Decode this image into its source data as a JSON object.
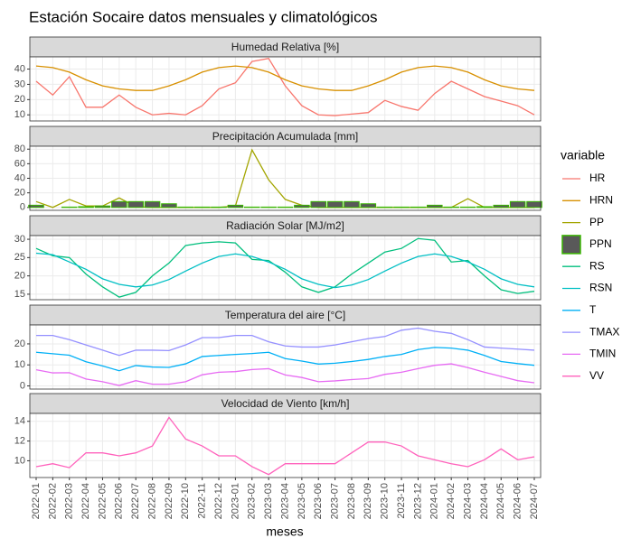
{
  "chart_data": {
    "type": "line",
    "title": "Estación Socaire datos mensuales y climatológicos",
    "x_label": "meses",
    "legend_title": "variable",
    "categories": [
      "2022-01",
      "2022-02",
      "2022-03",
      "2022-04",
      "2022-05",
      "2022-06",
      "2022-07",
      "2022-08",
      "2022-09",
      "2022-10",
      "2022-11",
      "2022-12",
      "2023-01",
      "2023-02",
      "2023-03",
      "2023-04",
      "2023-05",
      "2023-06",
      "2023-07",
      "2023-08",
      "2023-09",
      "2023-10",
      "2023-11",
      "2023-12",
      "2024-01",
      "2024-02",
      "2024-03",
      "2024-04",
      "2024-05",
      "2024-06",
      "2024-07"
    ],
    "grid": true,
    "panels": [
      {
        "title": "Humedad Relativa [%]",
        "ylim": [
          6,
          48
        ],
        "yticks": [
          10,
          20,
          30,
          40
        ],
        "series": [
          {
            "name": "HR",
            "color": "#F8766D",
            "type": "line",
            "values": [
              32,
              23,
              35,
              15,
              15,
              23,
              15,
              10,
              11,
              10,
              16,
              27,
              31,
              45,
              47,
              29,
              16,
              10,
              9.5,
              10.5,
              11.5,
              19.5,
              15.5,
              13,
              24,
              32,
              27,
              22,
              19,
              16,
              10
            ]
          },
          {
            "name": "HRN",
            "color": "#D89000",
            "type": "line",
            "values": [
              42,
              41,
              38,
              33,
              29,
              27,
              26,
              26,
              29,
              33,
              38,
              41,
              42,
              41,
              38,
              33,
              29,
              27,
              26,
              26,
              29,
              33,
              38,
              41,
              42,
              41,
              38,
              33,
              29,
              27,
              26
            ]
          }
        ]
      },
      {
        "title": "Precipitación Acumulada [mm]",
        "ylim": [
          -4,
          84
        ],
        "yticks": [
          0,
          20,
          40,
          60,
          80
        ],
        "series": [
          {
            "name": "PP",
            "color": "#A3A500",
            "type": "line",
            "values": [
              8,
              0,
              11,
              2,
              2,
              13,
              1,
              0,
              0,
              0,
              0,
              0,
              2,
              79,
              38,
              11,
              3,
              0,
              0,
              0,
              0,
              0,
              0,
              0,
              0,
              0,
              12,
              0,
              0,
              0,
              0
            ]
          },
          {
            "name": "PPN",
            "color": "#39B600",
            "fill": "#595959",
            "type": "bar",
            "values": [
              3,
              0,
              0.5,
              1,
              2,
              8,
              8,
              8,
              5,
              0.5,
              0.5,
              0.5,
              3,
              0.5,
              0.5,
              0.5,
              3,
              8,
              8,
              8,
              5,
              0.5,
              0.5,
              0.5,
              3,
              0.5,
              0.5,
              1,
              3,
              8,
              8
            ]
          }
        ]
      },
      {
        "title": "Radiación Solar [MJ/m2]",
        "ylim": [
          13.5,
          31
        ],
        "yticks": [
          15,
          20,
          25,
          30
        ],
        "series": [
          {
            "name": "RS",
            "color": "#00BF7D",
            "type": "line",
            "values": [
              27.5,
              25.5,
              25,
              20.5,
              17,
              14.2,
              15.5,
              20,
              23.5,
              28.3,
              29,
              29.3,
              29,
              24.5,
              24.2,
              21,
              17,
              15.5,
              17,
              20.5,
              23.5,
              26.5,
              27.5,
              30.2,
              29.7,
              23.8,
              24.2,
              20,
              16.2,
              15.2,
              15.8
            ]
          },
          {
            "name": "RSN",
            "color": "#00BFC4",
            "type": "line",
            "values": [
              26.2,
              25.8,
              23.8,
              21.8,
              19.2,
              17.7,
              17,
              17.5,
              19,
              21.3,
              23.5,
              25.3,
              26,
              25.3,
              23.8,
              21.8,
              19.2,
              17.7,
              16.8,
              17.5,
              19,
              21.3,
              23.5,
              25.3,
              26,
              25.3,
              23.8,
              21.8,
              19.2,
              17.7,
              17
            ]
          }
        ]
      },
      {
        "title": "Temperatura del aire [°C]",
        "ylim": [
          -1.5,
          29
        ],
        "yticks": [
          0,
          10,
          20
        ],
        "series": [
          {
            "name": "T",
            "color": "#00B0F6",
            "type": "line",
            "values": [
              16,
              15.3,
              14.6,
              11.5,
              9.5,
              7.2,
              9.7,
              9,
              8.8,
              10.5,
              14,
              14.5,
              15,
              15.4,
              16,
              13,
              11.8,
              10.4,
              10.8,
              11.6,
              12.6,
              14,
              15,
              17.3,
              18.3,
              18,
              17,
              14.5,
              11.6,
              10.6,
              9.8
            ]
          },
          {
            "name": "TMAX",
            "color": "#9590FF",
            "type": "line",
            "values": [
              24,
              24,
              22,
              19.5,
              17,
              14.5,
              17,
              17,
              16.8,
              19.5,
              23,
              23,
              24,
              24,
              21,
              19,
              18.5,
              18.5,
              19.5,
              21,
              22.5,
              23.5,
              26.5,
              27.5,
              26,
              25,
              22,
              18.5,
              18,
              17.5,
              17
            ]
          },
          {
            "name": "TMIN",
            "color": "#E76BF3",
            "type": "line",
            "values": [
              7.7,
              6.2,
              6.3,
              3.3,
              2,
              0.2,
              2.5,
              0.8,
              0.8,
              2,
              5.3,
              6.5,
              6.8,
              7.8,
              8.2,
              5.2,
              4,
              2,
              2.4,
              3,
              3.5,
              5.5,
              6.5,
              8.2,
              9.8,
              10.5,
              8.7,
              6.5,
              4.5,
              2.5,
              1.5
            ]
          }
        ]
      },
      {
        "title": "Velocidad de Viento [km/h]",
        "ylim": [
          8.3,
          14.8
        ],
        "yticks": [
          10,
          12,
          14
        ],
        "series": [
          {
            "name": "VV",
            "color": "#FF62BC",
            "type": "line",
            "values": [
              9.4,
              9.7,
              9.3,
              10.8,
              10.8,
              10.5,
              10.8,
              11.5,
              14.4,
              12.2,
              11.5,
              10.5,
              10.5,
              9.4,
              8.6,
              9.7,
              9.7,
              9.7,
              9.7,
              10.8,
              11.9,
              11.9,
              11.5,
              10.5,
              10.1,
              9.7,
              9.4,
              10.1,
              11.2,
              10.1,
              10.4
            ]
          }
        ]
      }
    ]
  }
}
